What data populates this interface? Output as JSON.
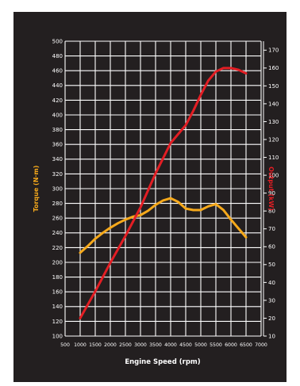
{
  "chart_data": {
    "type": "line",
    "title": "",
    "xlabel": "Engine Speed (rpm)",
    "ylabel_left": "Torque (N·m)",
    "ylabel_right": "Output (kW)",
    "xlim": [
      500,
      7000
    ],
    "ylim_left": [
      100,
      500
    ],
    "ylim_right": [
      10,
      175
    ],
    "grid": true,
    "x_ticks": [
      500,
      1000,
      1500,
      2000,
      2500,
      3000,
      3500,
      4000,
      4500,
      5000,
      5500,
      6000,
      6500,
      7000
    ],
    "y_left_ticks": [
      100,
      120,
      140,
      160,
      180,
      200,
      220,
      240,
      260,
      280,
      300,
      320,
      340,
      360,
      380,
      400,
      420,
      440,
      460,
      480,
      500
    ],
    "y_right_ticks": [
      10,
      20,
      30,
      40,
      50,
      60,
      70,
      80,
      90,
      100,
      110,
      120,
      130,
      140,
      150,
      160,
      170
    ],
    "series": [
      {
        "name": "Torque",
        "axis": "left",
        "color": "#f6a91b",
        "x": [
          1000,
          1250,
          1500,
          1750,
          2000,
          2250,
          2500,
          2750,
          3000,
          3250,
          3500,
          3750,
          4000,
          4250,
          4500,
          4750,
          5000,
          5250,
          5500,
          5750,
          6000,
          6250,
          6500
        ],
        "y": [
          213,
          222,
          232,
          240,
          247,
          253,
          258,
          262,
          264,
          270,
          278,
          284,
          287,
          282,
          273,
          271,
          271,
          276,
          279,
          271,
          258,
          246,
          234
        ]
      },
      {
        "name": "Output",
        "axis": "right",
        "color": "#e31e24",
        "x": [
          1000,
          1500,
          2000,
          2500,
          3000,
          3500,
          4000,
          4500,
          4750,
          5000,
          5250,
          5500,
          5750,
          6000,
          6250,
          6500
        ],
        "y": [
          20,
          35,
          51,
          66,
          82,
          101,
          118,
          128,
          136,
          145,
          153,
          158,
          160,
          160,
          159,
          157
        ]
      }
    ]
  }
}
